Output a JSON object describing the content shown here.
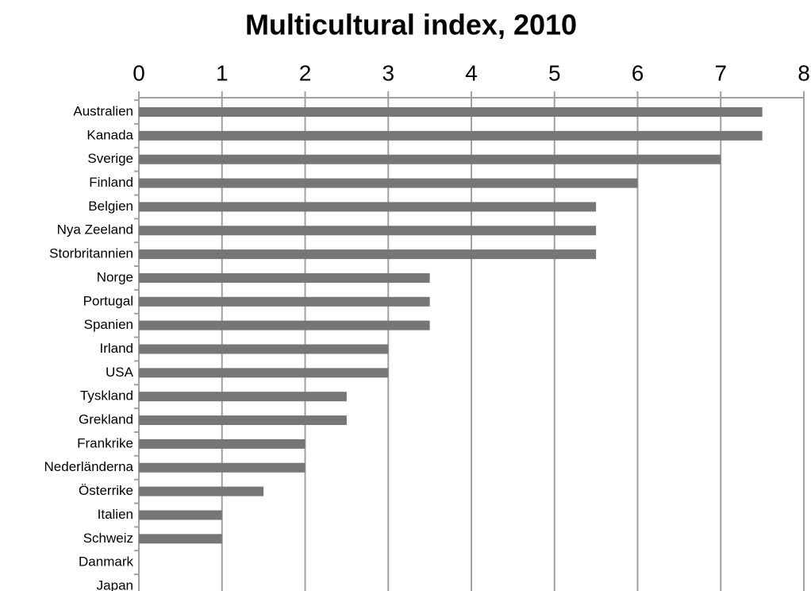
{
  "chart_data": {
    "type": "bar",
    "orientation": "horizontal",
    "title": "Multicultural index, 2010",
    "categories": [
      "Australien",
      "Kanada",
      "Sverige",
      "Finland",
      "Belgien",
      "Nya Zeeland",
      "Storbritannien",
      "Norge",
      "Portugal",
      "Spanien",
      "Irland",
      "USA",
      "Tyskland",
      "Grekland",
      "Frankrike",
      "Nederländerna",
      "Österrike",
      "Italien",
      "Schweiz",
      "Danmark",
      "Japan"
    ],
    "values": [
      7.5,
      7.5,
      7,
      6,
      5.5,
      5.5,
      5.5,
      3.5,
      3.5,
      3.5,
      3,
      3,
      2.5,
      2.5,
      2,
      2,
      1.5,
      1,
      1,
      0,
      0
    ],
    "color": "#767676",
    "xlim": [
      0,
      8
    ],
    "xticks": [
      0,
      1,
      2,
      3,
      4,
      5,
      6,
      7,
      8
    ],
    "grid": true
  }
}
